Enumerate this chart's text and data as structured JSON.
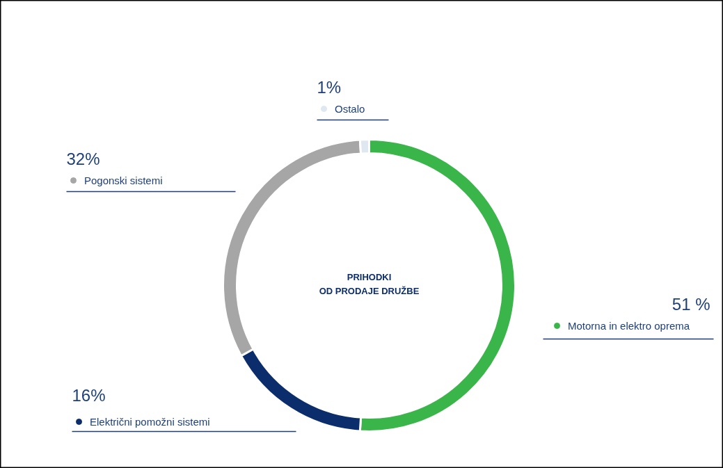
{
  "chart_data": {
    "type": "donut",
    "title": "PRIHODKI\nOD PRODAJE DRUŽBE",
    "categories": [
      "Motorna in elektro oprema",
      "Električni pomožni sistemi",
      "Pogonski sistemi",
      "Ostalo"
    ],
    "values": [
      51,
      16,
      32,
      1
    ],
    "colors": [
      "#3ab54a",
      "#0b2d6b",
      "#a6a6a6",
      "#dfe7f0"
    ],
    "value_labels": [
      "51 %",
      "16%",
      "32%",
      "1%"
    ],
    "legend": "left"
  }
}
